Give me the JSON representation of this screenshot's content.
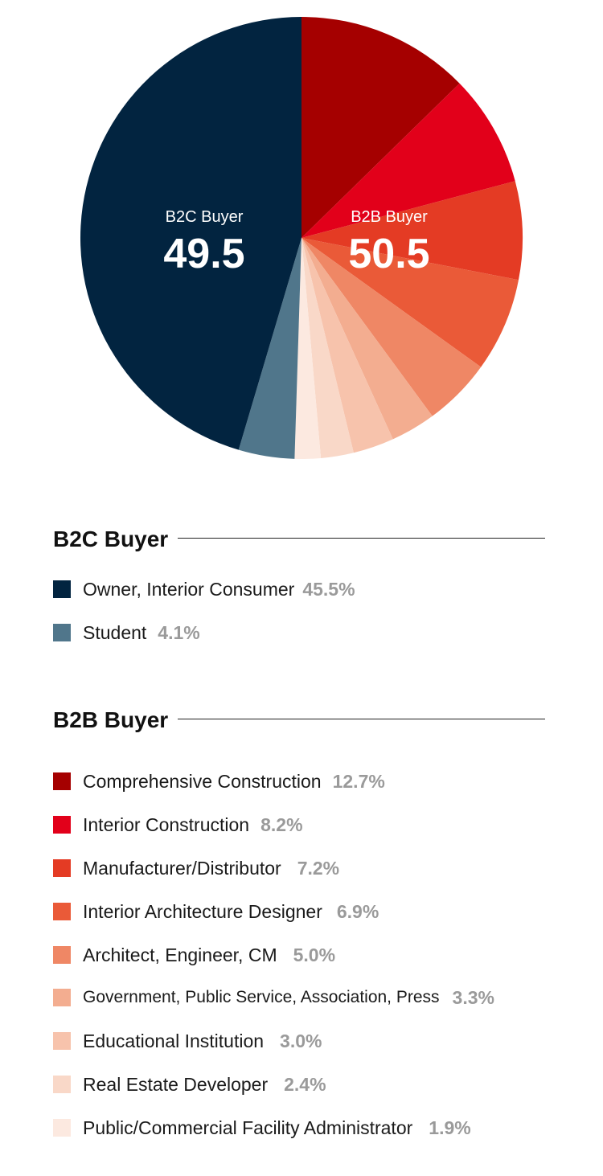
{
  "chart_data": {
    "type": "pie",
    "groups": [
      {
        "name": "B2C Buyer",
        "total": "49.5",
        "color": "#ffffff"
      },
      {
        "name": "B2B Buyer",
        "total": "50.5",
        "color": "#ffffff"
      }
    ],
    "slices": [
      {
        "label": "Comprehensive Construction",
        "value": 12.7,
        "pct": "12.7%",
        "color": "#a50000",
        "group": "B2B Buyer"
      },
      {
        "label": "Interior Construction",
        "value": 8.2,
        "pct": "8.2%",
        "color": "#e2001a",
        "group": "B2B Buyer"
      },
      {
        "label": "Manufacturer/Distributor",
        "value": 7.2,
        "pct": "7.2%",
        "color": "#e43b24",
        "group": "B2B Buyer"
      },
      {
        "label": "Interior Architecture Designer",
        "value": 6.9,
        "pct": "6.9%",
        "color": "#ea5a38",
        "group": "B2B Buyer"
      },
      {
        "label": "Architect, Engineer, CM",
        "value": 5.0,
        "pct": "5.0%",
        "color": "#ef8765",
        "group": "B2B Buyer"
      },
      {
        "label": "Government, Public Service, Association, Press",
        "value": 3.3,
        "pct": "3.3%",
        "color": "#f3ad90",
        "group": "B2B Buyer"
      },
      {
        "label": "Educational Institution",
        "value": 3.0,
        "pct": "3.0%",
        "color": "#f7c3ac",
        "group": "B2B Buyer"
      },
      {
        "label": "Real Estate Developer",
        "value": 2.4,
        "pct": "2.4%",
        "color": "#f9d8c8",
        "group": "B2B Buyer"
      },
      {
        "label": "Public/Commercial Facility Administrator",
        "value": 1.9,
        "pct": "1.9%",
        "color": "#fce9e0",
        "group": "B2B Buyer"
      },
      {
        "label": "Student",
        "value": 4.1,
        "pct": "4.1%",
        "color": "#50768b",
        "group": "B2C Buyer"
      },
      {
        "label": "Owner, Interior Consumer",
        "value": 45.5,
        "pct": "45.5%",
        "color": "#022440",
        "group": "B2C Buyer"
      }
    ]
  },
  "legend": {
    "b2c": {
      "title": "B2C Buyer",
      "items": [
        {
          "label": "Owner, Interior Consumer",
          "pct": "45.5%",
          "color": "#022440"
        },
        {
          "label": "Student",
          "pct": "4.1%",
          "color": "#50768b"
        }
      ]
    },
    "b2b": {
      "title": "B2B Buyer",
      "items": [
        {
          "label": "Comprehensive Construction",
          "pct": "12.7%",
          "color": "#a50000"
        },
        {
          "label": "Interior Construction",
          "pct": "8.2%",
          "color": "#e2001a"
        },
        {
          "label": "Manufacturer/Distributor",
          "pct": "7.2%",
          "color": "#e43b24"
        },
        {
          "label": "Interior Architecture Designer",
          "pct": "6.9%",
          "color": "#ea5a38"
        },
        {
          "label": "Architect, Engineer, CM",
          "pct": "5.0%",
          "color": "#ef8765"
        },
        {
          "label": "Government, Public Service, Association, Press",
          "pct": "3.3%",
          "color": "#f3ad90"
        },
        {
          "label": "Educational Institution",
          "pct": "3.0%",
          "color": "#f7c3ac"
        },
        {
          "label": "Real Estate Developer",
          "pct": "2.4%",
          "color": "#f9d8c8"
        },
        {
          "label": "Public/Commercial Facility Administrator",
          "pct": "1.9%",
          "color": "#fce9e0"
        }
      ]
    }
  }
}
